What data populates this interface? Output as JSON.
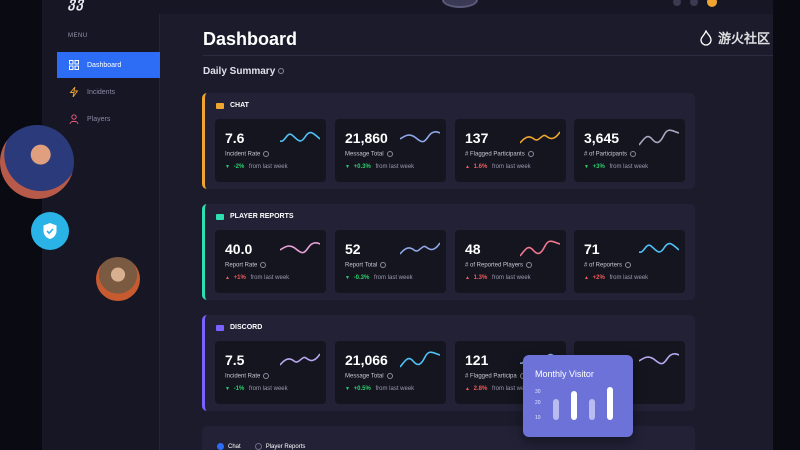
{
  "app": {
    "logo": "ვვ"
  },
  "sidebar": {
    "menu_label": "MENU",
    "items": [
      {
        "label": "Dashboard",
        "icon": "grid-icon",
        "active": true
      },
      {
        "label": "Incidents",
        "icon": "lightning-icon",
        "active": false
      },
      {
        "label": "Players",
        "icon": "user-icon",
        "active": false
      }
    ]
  },
  "main": {
    "title": "Dashboard",
    "summary_title": "Daily Summary"
  },
  "sections": [
    {
      "title": "CHAT",
      "accent": "#f0a530",
      "cards": [
        {
          "value": "7.6",
          "label": "Incident Rate",
          "delta": "-2%",
          "trend": "pos",
          "suffix": "from last week",
          "spark_color": "#4fc3f7"
        },
        {
          "value": "21,860",
          "label": "Message Total",
          "delta": "+0.3%",
          "trend": "pos",
          "suffix": "from last week",
          "spark_color": "#8fa8e8"
        },
        {
          "value": "137",
          "label": "# Flagged Participants",
          "delta": "1.6%",
          "trend": "neg",
          "suffix": "from last week",
          "spark_color": "#f0a530"
        },
        {
          "value": "3,645",
          "label": "# of Participants",
          "delta": "+3%",
          "trend": "pos",
          "suffix": "from last week",
          "spark_color": "#a8a8c0"
        }
      ]
    },
    {
      "title": "PLAYER REPORTS",
      "accent": "#2ee0b0",
      "cards": [
        {
          "value": "40.0",
          "label": "Report Rate",
          "delta": "+1%",
          "trend": "neg",
          "suffix": "from last week",
          "spark_color": "#e8a0d8"
        },
        {
          "value": "52",
          "label": "Report Total",
          "delta": "-0.3%",
          "trend": "pos",
          "suffix": "from last week",
          "spark_color": "#8fa8e8"
        },
        {
          "value": "48",
          "label": "# of Reported Players",
          "delta": "1.3%",
          "trend": "neg",
          "suffix": "from last week",
          "spark_color": "#f07890"
        },
        {
          "value": "71",
          "label": "# of Reporters",
          "delta": "+2%",
          "trend": "neg",
          "suffix": "from last week",
          "spark_color": "#4fc3f7"
        }
      ]
    },
    {
      "title": "DISCORD",
      "accent": "#7b61ff",
      "cards": [
        {
          "value": "7.5",
          "label": "Incident Rate",
          "delta": "-1%",
          "trend": "pos",
          "suffix": "from last week",
          "spark_color": "#b8a8f0"
        },
        {
          "value": "21,066",
          "label": "Message Total",
          "delta": "+0.5%",
          "trend": "pos",
          "suffix": "from last week",
          "spark_color": "#4fc3f7"
        },
        {
          "value": "121",
          "label": "# Flagged Participa",
          "delta": "2.8%",
          "trend": "neg",
          "suffix": "from last week",
          "spark_color": "#8fa8e8"
        },
        {
          "value": "",
          "label": "",
          "delta": "",
          "trend": "pos",
          "suffix": "",
          "spark_color": "#b8a8f0"
        }
      ]
    }
  ],
  "filters": [
    {
      "label": "Chat",
      "checked": true
    },
    {
      "label": "Player Reports",
      "checked": false
    }
  ],
  "monthly_visitor": {
    "title": "Monthly Visitor",
    "y_ticks": [
      "30",
      "20",
      "10"
    ],
    "values": [
      20,
      28,
      20,
      32
    ],
    "highlight": [
      false,
      true,
      false,
      true
    ]
  },
  "watermark": {
    "text": "游火社区"
  }
}
